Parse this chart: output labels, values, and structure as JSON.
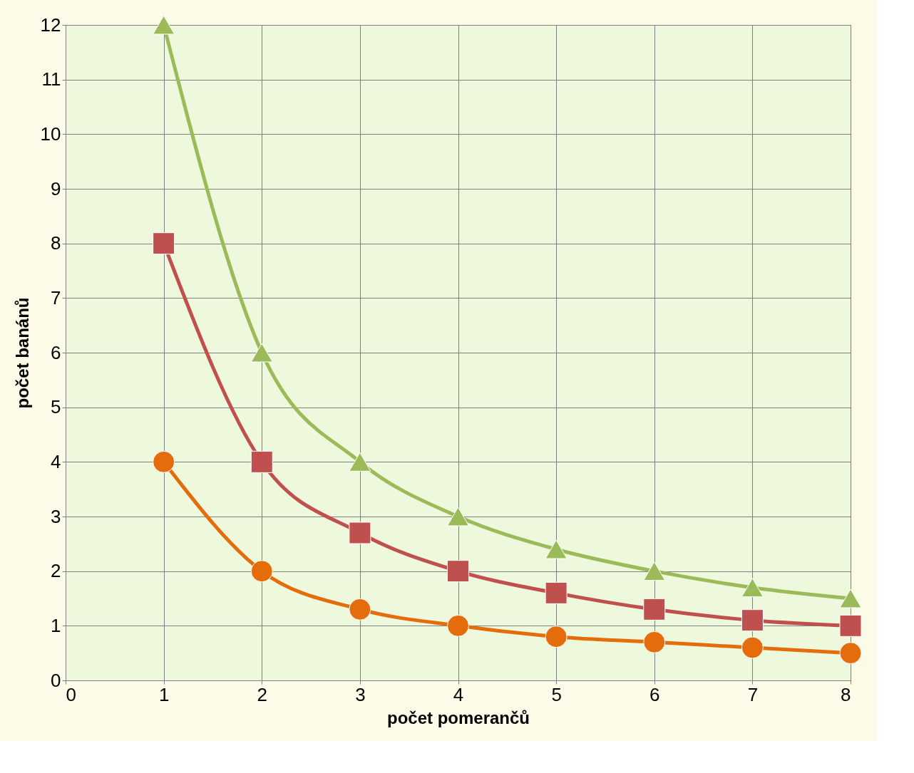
{
  "chart_data": {
    "type": "line",
    "xlabel": "počet pomerančů",
    "ylabel": "počet banánů",
    "x": [
      1,
      2,
      3,
      4,
      5,
      6,
      7,
      8
    ],
    "series": [
      {
        "color": "#9bbb59",
        "marker": "triangle",
        "values": [
          12,
          6,
          4,
          3,
          2.4,
          2,
          1.7,
          1.5
        ]
      },
      {
        "color": "#c0504d",
        "marker": "square",
        "values": [
          8,
          4,
          2.7,
          2,
          1.6,
          1.3,
          1.1,
          1
        ]
      },
      {
        "color": "#e46c0a",
        "marker": "circle",
        "values": [
          4,
          2,
          1.3,
          1,
          0.8,
          0.7,
          0.6,
          0.5
        ]
      }
    ],
    "xlim": [
      0,
      8
    ],
    "xticks": [
      0,
      1,
      2,
      3,
      4,
      5,
      6,
      7,
      8
    ],
    "ylim": [
      0,
      12
    ],
    "yticks": [
      0,
      1,
      2,
      3,
      4,
      5,
      6,
      7,
      8,
      9,
      10,
      11,
      12
    ],
    "grid": true,
    "line_style": "solid"
  }
}
